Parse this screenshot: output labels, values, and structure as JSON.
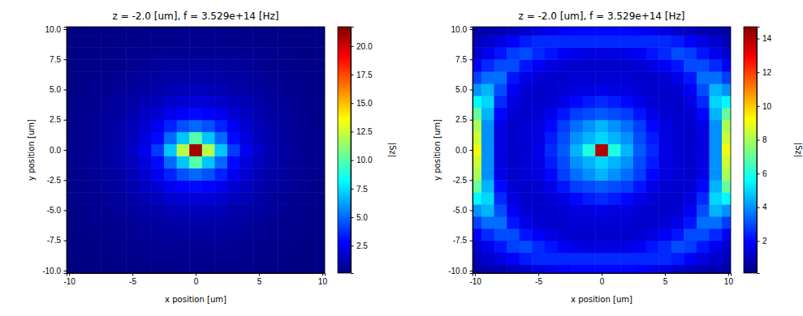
{
  "chart_data": [
    {
      "type": "heatmap",
      "title": "z = -2.0 [um], f = 3.529e+14 [Hz]",
      "x_label": "x position [um]",
      "y_label": "y position [um]",
      "x": [
        -10,
        -9,
        -8,
        -7,
        -6,
        -5,
        -4,
        -3,
        -2,
        -1,
        0,
        1,
        2,
        3,
        4,
        5,
        6,
        7,
        8,
        9,
        10
      ],
      "y": [
        -10,
        -9,
        -8,
        -7,
        -6,
        -5,
        -4,
        -3,
        -2,
        -1,
        0,
        1,
        2,
        3,
        4,
        5,
        6,
        7,
        8,
        9,
        10
      ],
      "z": [
        [
          0.15,
          0.15,
          0.2,
          0.2,
          0.25,
          0.25,
          0.3,
          0.3,
          0.3,
          0.35,
          0.35,
          0.35,
          0.3,
          0.3,
          0.3,
          0.25,
          0.25,
          0.2,
          0.2,
          0.15,
          0.15
        ],
        [
          0.15,
          0.2,
          0.2,
          0.25,
          0.3,
          0.3,
          0.35,
          0.4,
          0.4,
          0.45,
          0.45,
          0.45,
          0.4,
          0.4,
          0.35,
          0.3,
          0.3,
          0.25,
          0.2,
          0.2,
          0.15
        ],
        [
          0.2,
          0.2,
          0.25,
          0.3,
          0.35,
          0.4,
          0.45,
          0.5,
          0.55,
          0.55,
          0.55,
          0.55,
          0.55,
          0.5,
          0.45,
          0.4,
          0.35,
          0.3,
          0.25,
          0.2,
          0.2
        ],
        [
          0.2,
          0.25,
          0.3,
          0.35,
          0.4,
          0.5,
          0.6,
          0.65,
          0.7,
          0.75,
          0.75,
          0.75,
          0.7,
          0.65,
          0.6,
          0.5,
          0.4,
          0.35,
          0.3,
          0.25,
          0.2
        ],
        [
          0.25,
          0.3,
          0.35,
          0.4,
          0.5,
          0.6,
          0.7,
          0.8,
          0.9,
          1,
          1,
          1,
          0.9,
          0.8,
          0.7,
          0.6,
          0.5,
          0.4,
          0.35,
          0.3,
          0.25
        ],
        [
          0.25,
          0.3,
          0.4,
          0.5,
          0.6,
          0.75,
          0.9,
          1,
          1.2,
          1.3,
          1.4,
          1.3,
          1.2,
          1,
          0.9,
          0.75,
          0.6,
          0.5,
          0.4,
          0.3,
          0.25
        ],
        [
          0.3,
          0.35,
          0.45,
          0.6,
          0.7,
          0.9,
          1.2,
          1.4,
          1.7,
          1.9,
          2,
          1.9,
          1.7,
          1.4,
          1.2,
          0.9,
          0.7,
          0.6,
          0.45,
          0.35,
          0.3
        ],
        [
          0.3,
          0.4,
          0.5,
          0.65,
          0.8,
          1.1,
          1.5,
          1.9,
          2.4,
          2.8,
          3,
          2.8,
          2.4,
          1.9,
          1.5,
          1.1,
          0.8,
          0.65,
          0.5,
          0.4,
          0.3
        ],
        [
          0.3,
          0.4,
          0.55,
          0.7,
          0.9,
          1.3,
          1.8,
          2.5,
          3.5,
          4.5,
          5,
          4.5,
          3.5,
          2.5,
          1.8,
          1.3,
          0.9,
          0.7,
          0.55,
          0.4,
          0.3
        ],
        [
          0.35,
          0.45,
          0.6,
          0.75,
          1,
          1.4,
          2.1,
          3,
          5,
          7,
          10,
          7,
          5,
          3,
          2.1,
          1.4,
          1,
          0.75,
          0.6,
          0.45,
          0.35
        ],
        [
          0.35,
          0.45,
          0.6,
          0.8,
          1.1,
          1.6,
          2.4,
          4,
          7,
          12,
          21,
          12,
          7,
          4,
          2.4,
          1.6,
          1.1,
          0.8,
          0.6,
          0.45,
          0.35
        ],
        [
          0.35,
          0.45,
          0.6,
          0.75,
          1,
          1.4,
          2.1,
          3,
          5,
          7,
          10,
          7,
          5,
          3,
          2.1,
          1.4,
          1,
          0.75,
          0.6,
          0.45,
          0.35
        ],
        [
          0.3,
          0.4,
          0.55,
          0.7,
          0.9,
          1.3,
          1.8,
          2.5,
          3.5,
          4.5,
          5,
          4.5,
          3.5,
          2.5,
          1.8,
          1.3,
          0.9,
          0.7,
          0.55,
          0.4,
          0.3
        ],
        [
          0.3,
          0.4,
          0.5,
          0.65,
          0.8,
          1.1,
          1.5,
          1.9,
          2.4,
          2.8,
          3,
          2.8,
          2.4,
          1.9,
          1.5,
          1.1,
          0.8,
          0.65,
          0.5,
          0.4,
          0.3
        ],
        [
          0.3,
          0.35,
          0.45,
          0.6,
          0.7,
          0.9,
          1.2,
          1.4,
          1.7,
          1.9,
          2,
          1.9,
          1.7,
          1.4,
          1.2,
          0.9,
          0.7,
          0.6,
          0.45,
          0.35,
          0.3
        ],
        [
          0.25,
          0.3,
          0.4,
          0.5,
          0.6,
          0.75,
          0.9,
          1,
          1.2,
          1.3,
          1.4,
          1.3,
          1.2,
          1,
          0.9,
          0.75,
          0.6,
          0.5,
          0.4,
          0.3,
          0.25
        ],
        [
          0.25,
          0.3,
          0.35,
          0.4,
          0.5,
          0.6,
          0.7,
          0.8,
          0.9,
          1,
          1,
          1,
          0.9,
          0.8,
          0.7,
          0.6,
          0.5,
          0.4,
          0.35,
          0.3,
          0.25
        ],
        [
          0.2,
          0.25,
          0.3,
          0.35,
          0.4,
          0.5,
          0.6,
          0.65,
          0.7,
          0.75,
          0.75,
          0.75,
          0.7,
          0.65,
          0.6,
          0.5,
          0.4,
          0.35,
          0.3,
          0.25,
          0.2
        ],
        [
          0.2,
          0.2,
          0.25,
          0.3,
          0.35,
          0.4,
          0.45,
          0.5,
          0.55,
          0.55,
          0.55,
          0.55,
          0.55,
          0.5,
          0.45,
          0.4,
          0.35,
          0.3,
          0.25,
          0.2,
          0.2
        ],
        [
          0.15,
          0.2,
          0.2,
          0.25,
          0.3,
          0.3,
          0.35,
          0.4,
          0.4,
          0.45,
          0.45,
          0.45,
          0.4,
          0.4,
          0.35,
          0.3,
          0.3,
          0.25,
          0.2,
          0.2,
          0.15
        ],
        [
          0.15,
          0.15,
          0.2,
          0.2,
          0.25,
          0.25,
          0.3,
          0.3,
          0.3,
          0.35,
          0.35,
          0.35,
          0.3,
          0.3,
          0.3,
          0.25,
          0.25,
          0.2,
          0.2,
          0.15,
          0.15
        ]
      ],
      "xlim": [
        -10.2,
        10.2
      ],
      "ylim": [
        -10.2,
        10.2
      ],
      "xticks": [
        -10,
        -5,
        0,
        5,
        10
      ],
      "yticks": [
        {
          "value": -10,
          "label": "-10.0"
        },
        {
          "value": -7.5,
          "label": "-7.5"
        },
        {
          "value": -5,
          "label": "-5.0"
        },
        {
          "value": -2.5,
          "label": "-2.5"
        },
        {
          "value": 0,
          "label": "0.0"
        },
        {
          "value": 2.5,
          "label": "2.5"
        },
        {
          "value": 5,
          "label": "5.0"
        },
        {
          "value": 7.5,
          "label": "7.5"
        },
        {
          "value": 10,
          "label": "10.0"
        }
      ],
      "colorbar": {
        "label": "|Sz|",
        "range": [
          0.1,
          21.7
        ],
        "ticks": [
          2.5,
          {
            "value": 5,
            "label": "5.0"
          },
          7.5,
          {
            "value": 10,
            "label": "10.0"
          },
          12.5,
          {
            "value": 15,
            "label": "15.0"
          },
          17.5,
          {
            "value": 20,
            "label": "20.0"
          }
        ]
      }
    },
    {
      "type": "heatmap",
      "title": "z = -2.0 [um], f = 3.529e+14 [Hz]",
      "x_label": "x position [um]",
      "y_label": "y position [um]",
      "x": [
        -10,
        -9,
        -8,
        -7,
        -6,
        -5,
        -4,
        -3,
        -2,
        -1,
        0,
        1,
        2,
        3,
        4,
        5,
        6,
        7,
        8,
        9,
        10
      ],
      "y": [
        -10,
        -9,
        -8,
        -7,
        -6,
        -5,
        -4,
        -3,
        -2,
        -1,
        0,
        1,
        2,
        3,
        4,
        5,
        6,
        7,
        8,
        9,
        10
      ],
      "z": [
        [
          0.6,
          0.7,
          0.8,
          1,
          1.2,
          1.5,
          1.7,
          1.9,
          2,
          2,
          2,
          2,
          2,
          1.9,
          1.7,
          1.5,
          1.2,
          1,
          0.8,
          0.7,
          0.6
        ],
        [
          0.9,
          1.2,
          1.5,
          1.9,
          2.3,
          2.5,
          2.5,
          2.5,
          2.5,
          2.5,
          2.5,
          2.5,
          2.5,
          2.5,
          2.5,
          2.5,
          2.3,
          1.9,
          1.5,
          1.2,
          0.9
        ],
        [
          1.2,
          1.7,
          2.2,
          2.8,
          3,
          2.5,
          2.2,
          1.8,
          1.6,
          1.5,
          1.5,
          1.5,
          1.6,
          1.8,
          2.2,
          2.5,
          3,
          2.8,
          2.2,
          1.7,
          1.2
        ],
        [
          1.8,
          2.5,
          3,
          3,
          2.2,
          1.8,
          1.5,
          1.3,
          1.2,
          1.2,
          1.2,
          1.2,
          1.2,
          1.3,
          1.5,
          1.8,
          2.2,
          3,
          3,
          2.5,
          1.8
        ],
        [
          2.8,
          3.5,
          3.5,
          2.2,
          1.6,
          1.3,
          1.2,
          1.2,
          1.3,
          1.3,
          1.3,
          1.3,
          1.3,
          1.2,
          1.2,
          1.3,
          1.6,
          2.2,
          3.5,
          3.5,
          2.8
        ],
        [
          4,
          4.5,
          3,
          1.8,
          1.3,
          1.2,
          1.2,
          1.3,
          1.5,
          1.5,
          1.6,
          1.5,
          1.5,
          1.3,
          1.2,
          1.2,
          1.3,
          1.8,
          3,
          4.5,
          4
        ],
        [
          5.5,
          5,
          2.5,
          1.5,
          1.2,
          1.2,
          1.3,
          1.6,
          2,
          2.3,
          2.5,
          2.3,
          2,
          1.6,
          1.3,
          1.2,
          1.2,
          1.5,
          2.5,
          5,
          5.5
        ],
        [
          7,
          4.5,
          2,
          1.3,
          1.2,
          1.3,
          1.6,
          2.2,
          2.8,
          3,
          3.2,
          3,
          2.8,
          2.2,
          1.6,
          1.3,
          1.2,
          1.3,
          2,
          4.5,
          7
        ],
        [
          8,
          4,
          1.6,
          1.2,
          1.3,
          1.5,
          2,
          2.8,
          3.5,
          4,
          4.5,
          4,
          3.5,
          2.8,
          2,
          1.5,
          1.3,
          1.2,
          1.6,
          4,
          8
        ],
        [
          8.5,
          4,
          1.5,
          1.2,
          1.3,
          1.5,
          2.3,
          3,
          4,
          4.5,
          5,
          4.5,
          4,
          3,
          2.3,
          1.5,
          1.3,
          1.2,
          1.5,
          4,
          8.5
        ],
        [
          9,
          4,
          1.5,
          1.2,
          1.3,
          1.6,
          2.5,
          3.2,
          4.5,
          6,
          14,
          6,
          4.5,
          3.2,
          2.5,
          1.6,
          1.3,
          1.2,
          1.5,
          4,
          9
        ],
        [
          8.5,
          4,
          1.5,
          1.2,
          1.3,
          1.5,
          2.3,
          3,
          4,
          4.5,
          5,
          4.5,
          4,
          3,
          2.3,
          1.5,
          1.3,
          1.2,
          1.5,
          4,
          8.5
        ],
        [
          8,
          4,
          1.6,
          1.2,
          1.3,
          1.5,
          2,
          2.8,
          3.5,
          4,
          4.5,
          4,
          3.5,
          2.8,
          2,
          1.5,
          1.3,
          1.2,
          1.6,
          4,
          8
        ],
        [
          7,
          4.5,
          2,
          1.3,
          1.2,
          1.3,
          1.6,
          2.2,
          2.8,
          3,
          3.2,
          3,
          2.8,
          2.2,
          1.6,
          1.3,
          1.2,
          1.3,
          2,
          4.5,
          7
        ],
        [
          5.5,
          5,
          2.5,
          1.5,
          1.2,
          1.2,
          1.3,
          1.6,
          2,
          2.3,
          2.5,
          2.3,
          2,
          1.6,
          1.3,
          1.2,
          1.2,
          1.5,
          2.5,
          5,
          5.5
        ],
        [
          4,
          4.5,
          3,
          1.8,
          1.3,
          1.2,
          1.2,
          1.3,
          1.5,
          1.5,
          1.6,
          1.5,
          1.5,
          1.3,
          1.2,
          1.2,
          1.3,
          1.8,
          3,
          4.5,
          4
        ],
        [
          2.8,
          3.5,
          3.5,
          2.2,
          1.6,
          1.3,
          1.2,
          1.2,
          1.3,
          1.3,
          1.3,
          1.3,
          1.3,
          1.2,
          1.2,
          1.3,
          1.6,
          2.2,
          3.5,
          3.5,
          2.8
        ],
        [
          1.8,
          2.5,
          3,
          3,
          2.2,
          1.8,
          1.5,
          1.3,
          1.2,
          1.2,
          1.2,
          1.2,
          1.2,
          1.3,
          1.5,
          1.8,
          2.2,
          3,
          3,
          2.5,
          1.8
        ],
        [
          1.2,
          1.7,
          2.2,
          2.8,
          3,
          2.5,
          2.2,
          1.8,
          1.6,
          1.5,
          1.5,
          1.5,
          1.6,
          1.8,
          2.2,
          2.5,
          3,
          2.8,
          2.2,
          1.7,
          1.2
        ],
        [
          0.9,
          1.2,
          1.5,
          1.9,
          2.3,
          2.5,
          2.5,
          2.5,
          2.5,
          2.5,
          2.5,
          2.5,
          2.5,
          2.5,
          2.5,
          2.5,
          2.3,
          1.9,
          1.5,
          1.2,
          0.9
        ],
        [
          0.6,
          0.7,
          0.8,
          1,
          1.2,
          1.5,
          1.7,
          1.9,
          2,
          2,
          2,
          2,
          2,
          1.9,
          1.7,
          1.5,
          1.2,
          1,
          0.8,
          0.7,
          0.6
        ]
      ],
      "xlim": [
        -10.2,
        10.2
      ],
      "ylim": [
        -10.2,
        10.2
      ],
      "xticks": [
        -10,
        -5,
        0,
        5,
        10
      ],
      "yticks": [
        {
          "value": -10,
          "label": "-10.0"
        },
        {
          "value": -7.5,
          "label": "-7.5"
        },
        {
          "value": -5,
          "label": "-5.0"
        },
        {
          "value": -2.5,
          "label": "-2.5"
        },
        {
          "value": 0,
          "label": "0.0"
        },
        {
          "value": 2.5,
          "label": "2.5"
        },
        {
          "value": 5,
          "label": "5.0"
        },
        {
          "value": 7.5,
          "label": "7.5"
        },
        {
          "value": 10,
          "label": "10.0"
        }
      ],
      "colorbar": {
        "label": "|Sz|",
        "range": [
          0.1,
          14.7
        ],
        "ticks": [
          2,
          4,
          6,
          8,
          10,
          12,
          14
        ]
      }
    }
  ]
}
